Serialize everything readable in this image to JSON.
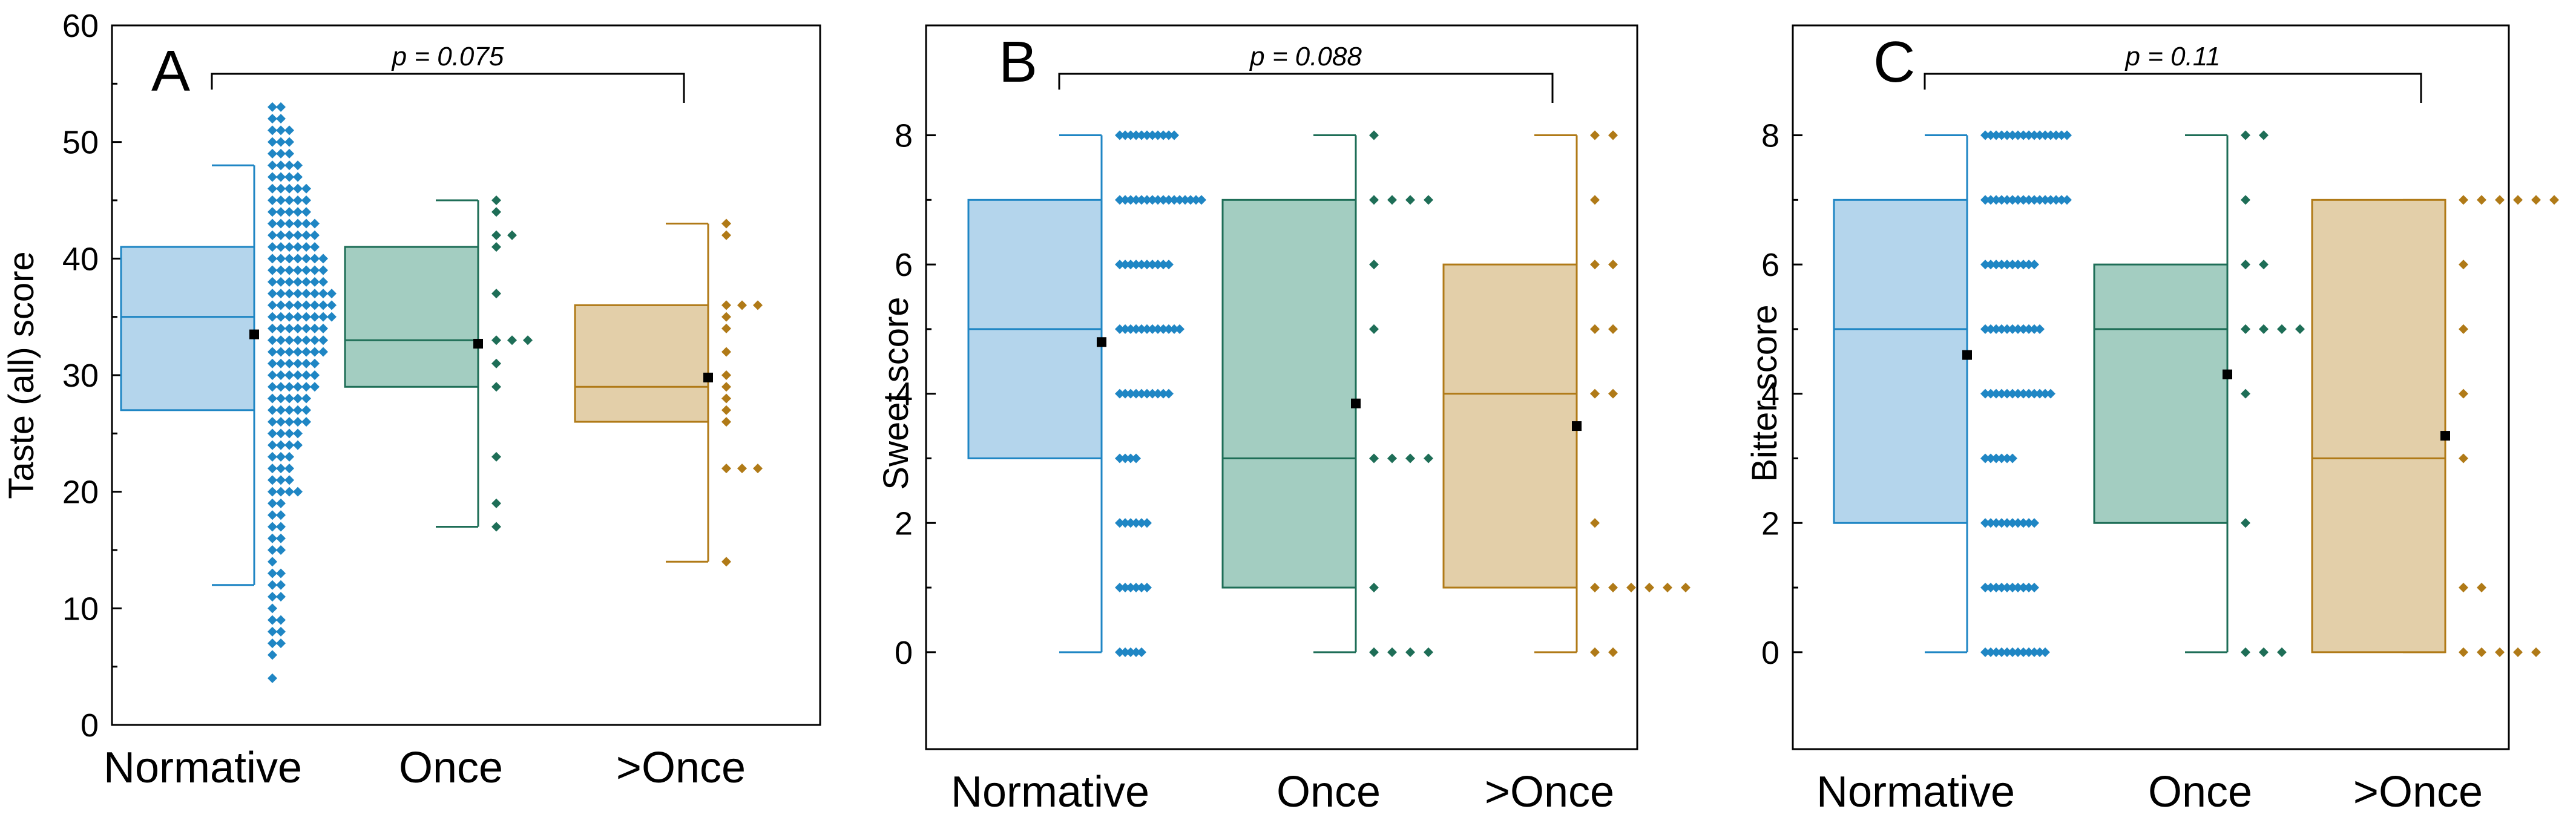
{
  "figure_title": "",
  "colors": {
    "Normative": {
      "fill": "#b4d5ec",
      "line": "#1f86c4"
    },
    "Once": {
      "fill": "#a3cdc1",
      "line": "#1e6e57"
    },
    ">Once": {
      "fill": "#e3cfa9",
      "line": "#b07a17"
    },
    "mean_marker": "#000000",
    "axis": "#000000"
  },
  "chart_data": [
    {
      "type": "box",
      "panel_label": "A",
      "ylabel": "Taste (all) score",
      "xlabel": "",
      "ylim": [
        0,
        60
      ],
      "yticks": [
        0,
        10,
        20,
        30,
        40,
        50,
        60
      ],
      "categories": [
        "Normative",
        "Once",
        ">Once"
      ],
      "comparison": {
        "from": "Normative",
        "to": ">Once",
        "label": "p = 0.075"
      },
      "boxes": [
        {
          "name": "Normative",
          "whisker_low": 12,
          "q1": 27,
          "median": 35,
          "q3": 41,
          "whisker_high": 48,
          "mean": 33.5,
          "points_y": [
            4,
            6,
            7,
            7,
            8,
            8,
            9,
            9,
            10,
            11,
            11,
            12,
            12,
            13,
            13,
            14,
            15,
            15,
            16,
            16,
            17,
            17,
            18,
            19,
            20,
            20,
            21,
            22,
            23,
            24,
            25,
            26,
            27,
            28,
            29,
            30,
            31,
            32,
            33,
            34,
            35,
            36,
            37,
            38,
            39,
            40,
            41,
            42,
            43,
            44,
            45,
            46,
            47,
            48,
            49,
            50,
            51,
            52,
            53
          ]
        },
        {
          "name": "Once",
          "whisker_low": 17,
          "q1": 29,
          "median": 33,
          "q3": 41,
          "whisker_high": 45,
          "mean": 32.7,
          "points_y": [
            17,
            19,
            23,
            29,
            31,
            33,
            33,
            33,
            37,
            41,
            42,
            42,
            44,
            45
          ]
        },
        {
          "name": ">Once",
          "whisker_low": 14,
          "q1": 26,
          "median": 29,
          "q3": 36,
          "whisker_high": 43,
          "mean": 29.8,
          "points_y": [
            14,
            22,
            22,
            22,
            26,
            27,
            28,
            29,
            30,
            32,
            34,
            35,
            36,
            36,
            36,
            42,
            43
          ]
        }
      ]
    },
    {
      "type": "box",
      "panel_label": "B",
      "ylabel": "Sweet score",
      "xlabel": "",
      "ylim": [
        -1.5,
        9.7
      ],
      "yticks": [
        0,
        2,
        4,
        6,
        8
      ],
      "categories": [
        "Normative",
        "Once",
        ">Once"
      ],
      "comparison": {
        "from": "Normative",
        "to": ">Once",
        "label": "p = 0.088"
      },
      "boxes": [
        {
          "name": "Normative",
          "whisker_low": 0,
          "q1": 3,
          "median": 5,
          "q3": 7,
          "whisker_high": 8,
          "mean": 4.8,
          "points_y": [
            0,
            1,
            2,
            3,
            4,
            5,
            6,
            7,
            8
          ],
          "point_counts": [
            5,
            6,
            6,
            4,
            10,
            12,
            10,
            16,
            11
          ]
        },
        {
          "name": "Once",
          "whisker_low": 0,
          "q1": 1,
          "median": 3,
          "q3": 7,
          "whisker_high": 8,
          "mean": 3.85,
          "points_y": [
            0,
            1,
            3,
            5,
            6,
            7,
            8
          ],
          "point_counts": [
            4,
            1,
            4,
            1,
            1,
            4,
            1
          ]
        },
        {
          "name": ">Once",
          "whisker_low": 0,
          "q1": 1,
          "median": 4,
          "q3": 6,
          "whisker_high": 8,
          "mean": 3.5,
          "points_y": [
            0,
            1,
            2,
            4,
            5,
            6,
            7,
            8
          ],
          "point_counts": [
            2,
            6,
            1,
            2,
            2,
            2,
            1,
            2
          ]
        }
      ]
    },
    {
      "type": "box",
      "panel_label": "C",
      "ylabel": "Bitter score",
      "xlabel": "",
      "ylim": [
        -1.5,
        9.7
      ],
      "yticks": [
        0,
        2,
        4,
        6,
        8
      ],
      "categories": [
        "Normative",
        "Once",
        ">Once"
      ],
      "comparison": {
        "from": "Normative",
        "to": ">Once",
        "label": "p = 0.11"
      },
      "boxes": [
        {
          "name": "Normative",
          "whisker_low": 0,
          "q1": 2,
          "median": 5,
          "q3": 7,
          "whisker_high": 8,
          "mean": 4.6,
          "points_y": [
            0,
            1,
            2,
            3,
            4,
            5,
            6,
            7,
            8
          ],
          "point_counts": [
            12,
            10,
            10,
            6,
            13,
            11,
            10,
            16,
            16
          ]
        },
        {
          "name": "Once",
          "whisker_low": 0,
          "q1": 2,
          "median": 5,
          "q3": 6,
          "whisker_high": 8,
          "mean": 4.3,
          "points_y": [
            0,
            2,
            4,
            5,
            6,
            7,
            8
          ],
          "point_counts": [
            3,
            1,
            1,
            4,
            2,
            1,
            2
          ]
        },
        {
          "name": ">Once",
          "whisker_low": 0,
          "q1": 0,
          "median": 3,
          "q3": 7,
          "whisker_high": 7,
          "mean": 3.35,
          "points_y": [
            0,
            1,
            3,
            4,
            5,
            6,
            7
          ],
          "point_counts": [
            5,
            2,
            1,
            1,
            1,
            1,
            6
          ]
        }
      ]
    }
  ]
}
